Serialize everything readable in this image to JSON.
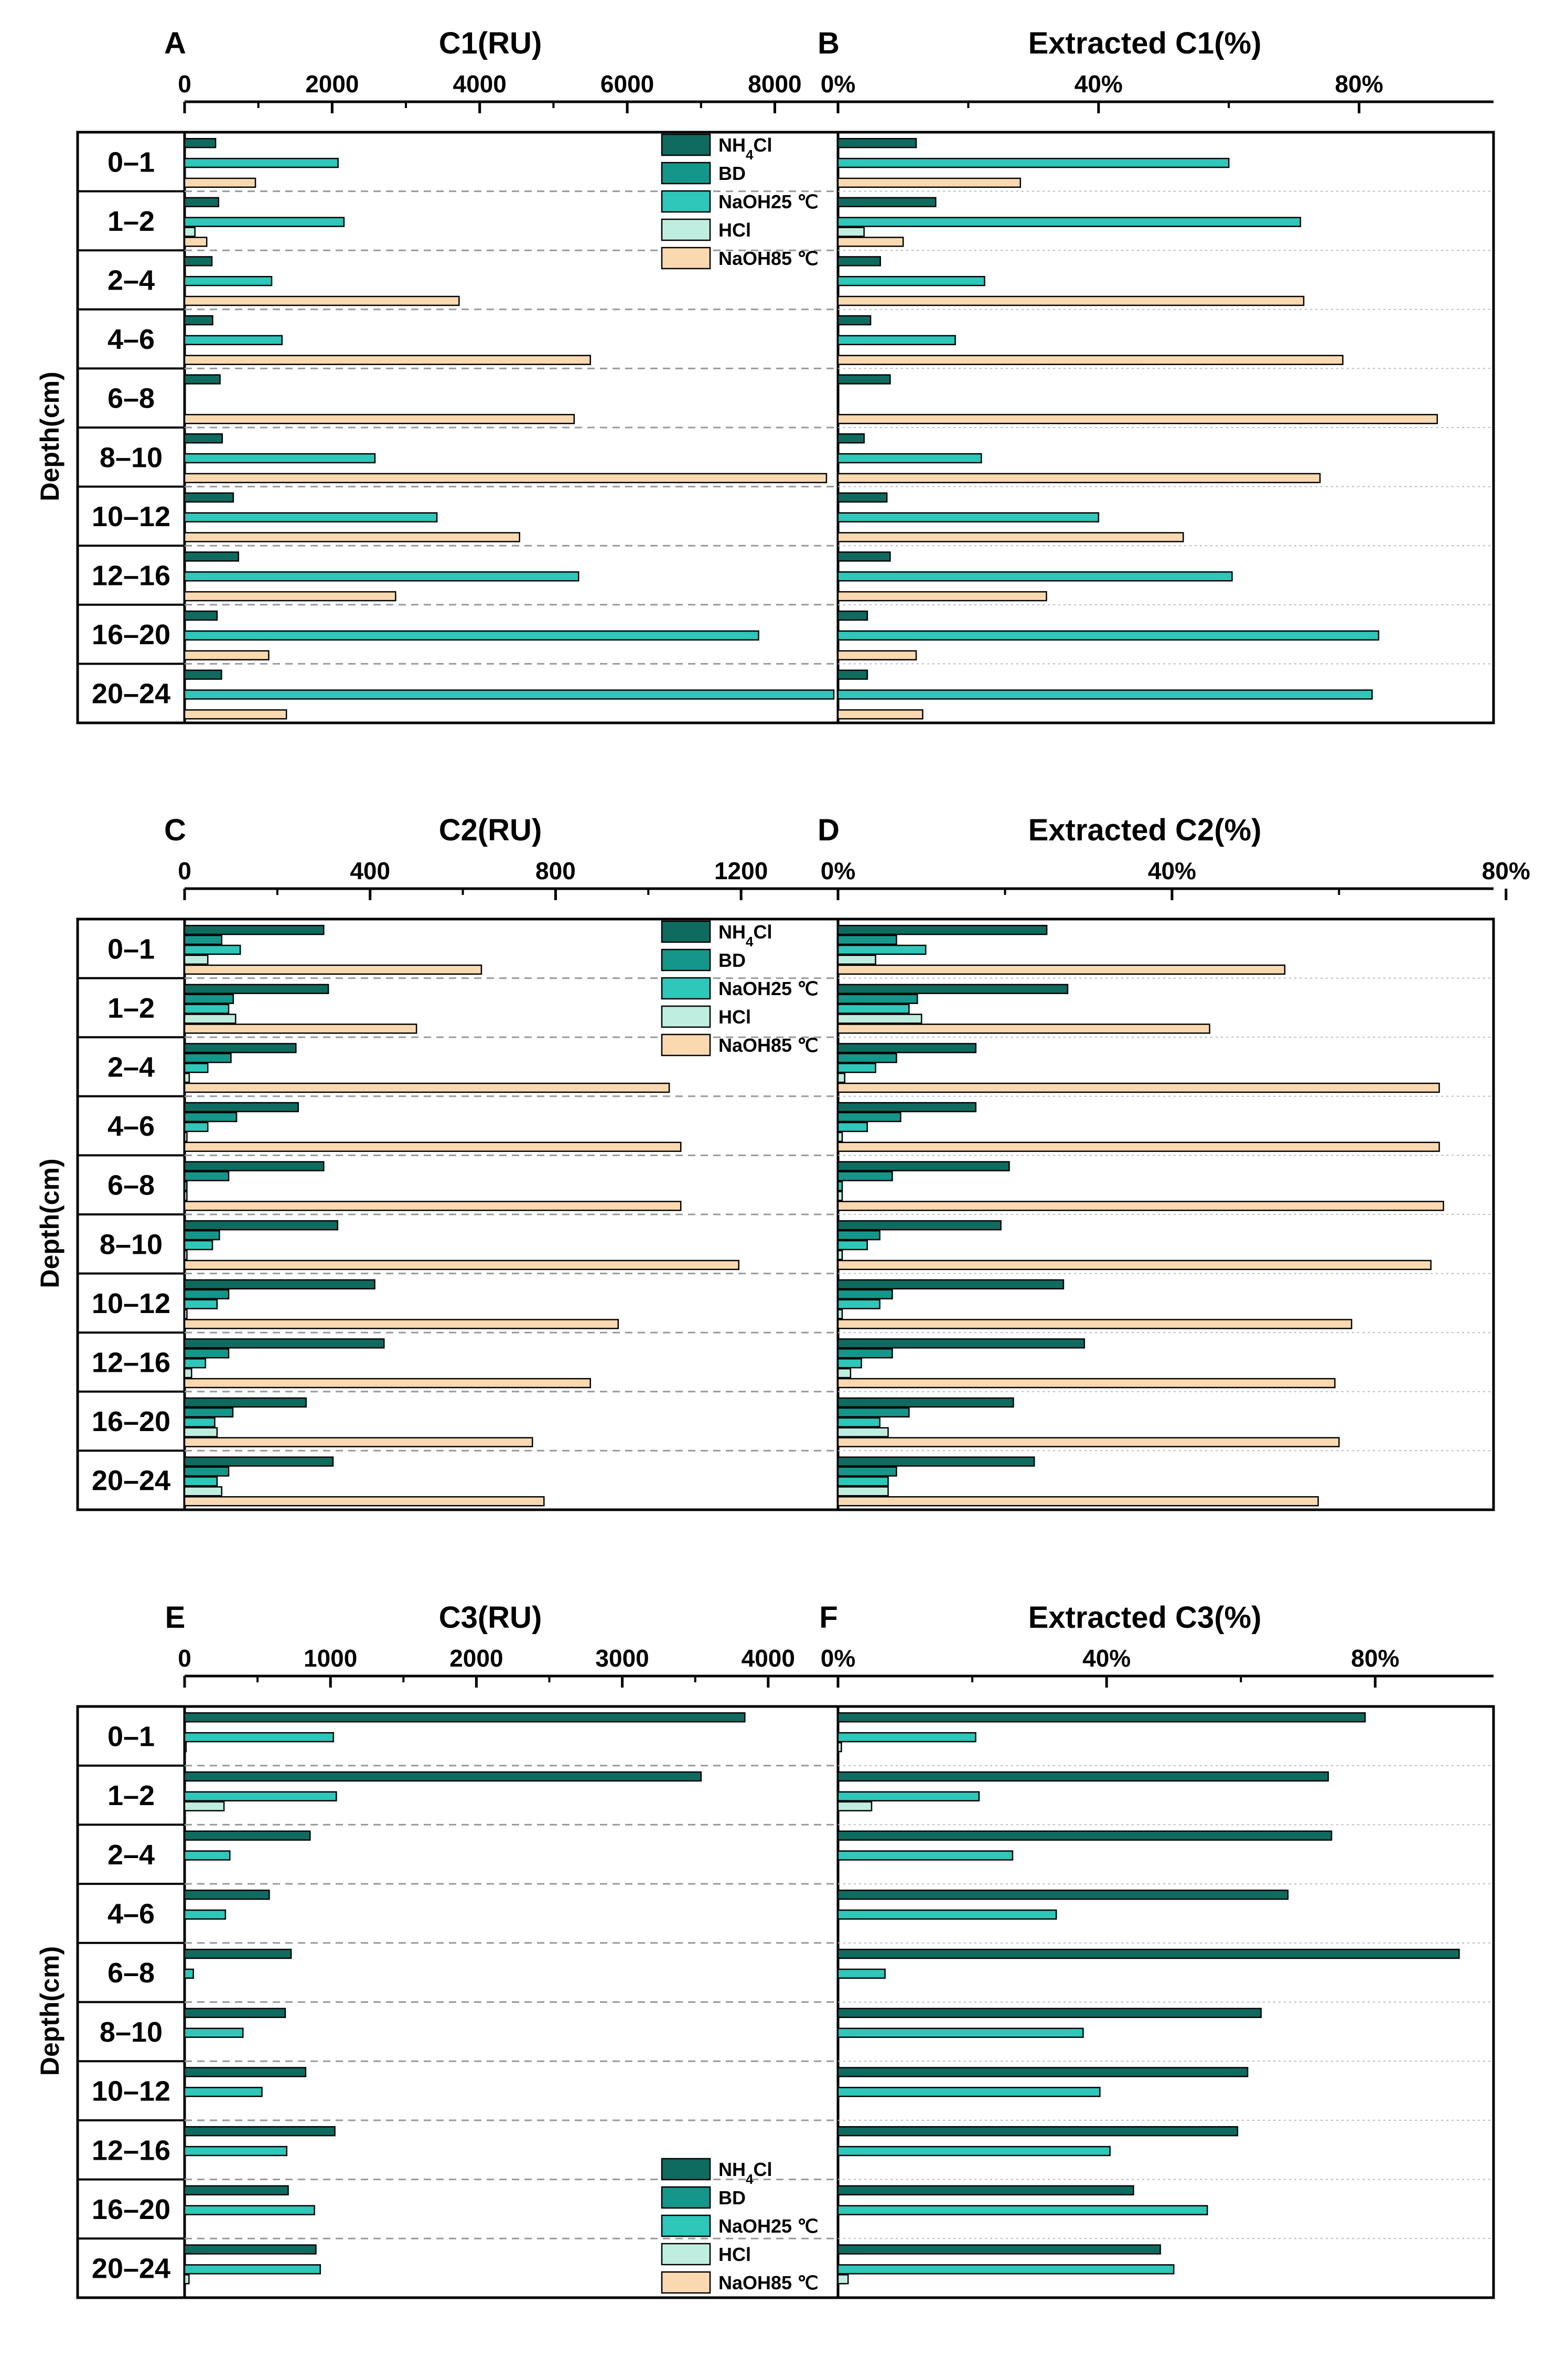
{
  "y_axis_label": "Depth(cm)",
  "depth_categories": [
    "0–1",
    "1–2",
    "2–4",
    "4–6",
    "6–8",
    "8–10",
    "10–12",
    "12–16",
    "16–20",
    "20–24"
  ],
  "fractions": [
    "NH4Cl",
    "BD",
    "NaOH25 ℃",
    "HCl",
    "NaOH85 ℃"
  ],
  "colors": {
    "NH4Cl": "#0f6b5f",
    "BD": "#15968a",
    "NaOH25 ℃": "#2ec7b9",
    "HCl": "#bfeee0",
    "NaOH85 ℃": "#fbd9b0"
  },
  "chart_data": [
    {
      "panel": "A",
      "type": "bar",
      "orientation": "horizontal",
      "title": "C1(RU)",
      "xlim": [
        0,
        8800
      ],
      "ticks": [
        0,
        2000,
        4000,
        6000,
        8000
      ],
      "tick_labels": [
        "0",
        "2000",
        "4000",
        "6000",
        "8000"
      ],
      "series": [
        {
          "name": "NH4Cl",
          "values": [
            420,
            460,
            370,
            380,
            480,
            510,
            660,
            730,
            440,
            500
          ]
        },
        {
          "name": "BD",
          "values": [
            0,
            0,
            0,
            0,
            0,
            0,
            0,
            0,
            0,
            0
          ]
        },
        {
          "name": "NaOH25 ℃",
          "values": [
            2080,
            2160,
            1180,
            1320,
            0,
            2580,
            3420,
            5340,
            7780,
            8800
          ]
        },
        {
          "name": "HCl",
          "values": [
            0,
            140,
            0,
            0,
            0,
            0,
            0,
            0,
            0,
            0
          ]
        },
        {
          "name": "NaOH85 ℃",
          "values": [
            960,
            300,
            3720,
            5500,
            5280,
            8700,
            4540,
            2860,
            1140,
            1380
          ]
        }
      ],
      "legend": "top-right"
    },
    {
      "panel": "B",
      "type": "bar",
      "orientation": "horizontal",
      "title": "Extracted C1(%)",
      "xlim": [
        0,
        100
      ],
      "ticks": [
        0,
        40,
        80
      ],
      "tick_labels": [
        "0%",
        "40%",
        "80%"
      ],
      "series": [
        {
          "name": "NH4Cl",
          "values": [
            12,
            15,
            6.5,
            5,
            8,
            4,
            7.5,
            8,
            4.5,
            4.5
          ]
        },
        {
          "name": "BD",
          "values": [
            0,
            0,
            0,
            0,
            0,
            0,
            0,
            0,
            0,
            0
          ]
        },
        {
          "name": "NaOH25 ℃",
          "values": [
            60,
            71,
            22.5,
            18,
            0,
            22,
            40,
            60.5,
            83,
            82
          ]
        },
        {
          "name": "HCl",
          "values": [
            0,
            4,
            0,
            0,
            0,
            0,
            0,
            0,
            0,
            0
          ]
        },
        {
          "name": "NaOH85 ℃",
          "values": [
            28,
            10,
            71.5,
            77.5,
            92,
            74,
            53,
            32,
            12,
            13
          ]
        }
      ]
    },
    {
      "panel": "C",
      "type": "bar",
      "orientation": "horizontal",
      "title": "C2(RU)",
      "xlim": [
        0,
        1400
      ],
      "ticks": [
        0,
        400,
        800,
        1200
      ],
      "tick_labels": [
        "0",
        "400",
        "800",
        "1200"
      ],
      "series": [
        {
          "name": "NH4Cl",
          "values": [
            300,
            310,
            240,
            245,
            300,
            330,
            410,
            430,
            262,
            320
          ]
        },
        {
          "name": "BD",
          "values": [
            80,
            105,
            100,
            112,
            95,
            75,
            95,
            95,
            104,
            95
          ]
        },
        {
          "name": "NaOH25 ℃",
          "values": [
            120,
            95,
            50,
            50,
            5,
            60,
            70,
            45,
            65,
            70
          ]
        },
        {
          "name": "HCl",
          "values": [
            50,
            110,
            10,
            5,
            5,
            5,
            5,
            15,
            70,
            80
          ]
        },
        {
          "name": "NaOH85 ℃",
          "values": [
            640,
            500,
            1045,
            1070,
            1070,
            1195,
            935,
            875,
            750,
            775
          ]
        }
      ],
      "legend": "top-right"
    },
    {
      "panel": "D",
      "type": "bar",
      "orientation": "horizontal",
      "title": "Extracted C2(%)",
      "xlim": [
        0,
        78
      ],
      "ticks": [
        0,
        40,
        80
      ],
      "tick_labels": [
        "0%",
        "40%",
        "80%"
      ],
      "series": [
        {
          "name": "NH4Cl",
          "values": [
            25,
            27.5,
            16.5,
            16.5,
            20.5,
            19.5,
            27,
            29.5,
            21,
            23.5
          ]
        },
        {
          "name": "BD",
          "values": [
            7,
            9.5,
            7,
            7.5,
            6.5,
            5,
            6.5,
            6.5,
            8.5,
            7
          ]
        },
        {
          "name": "NaOH25 ℃",
          "values": [
            10.5,
            8.5,
            4.5,
            3.5,
            0.5,
            3.5,
            5,
            2.8,
            5,
            6
          ]
        },
        {
          "name": "HCl",
          "values": [
            4.5,
            10,
            0.8,
            0.5,
            0.5,
            0.5,
            0.5,
            1.5,
            6,
            6
          ]
        },
        {
          "name": "NaOH85 ℃",
          "values": [
            53.5,
            44.5,
            72,
            72,
            72.5,
            71,
            61.5,
            59.5,
            60,
            57.5
          ]
        }
      ]
    },
    {
      "panel": "E",
      "type": "bar",
      "orientation": "horizontal",
      "title": "C3(RU)",
      "xlim": [
        0,
        4450
      ],
      "ticks": [
        0,
        1000,
        2000,
        3000,
        4000
      ],
      "tick_labels": [
        "0",
        "1000",
        "2000",
        "3000",
        "4000"
      ],
      "series": [
        {
          "name": "NH4Cl",
          "values": [
            3840,
            3540,
            860,
            580,
            730,
            690,
            830,
            1030,
            710,
            900
          ]
        },
        {
          "name": "BD",
          "values": [
            0,
            0,
            0,
            0,
            0,
            0,
            0,
            0,
            0,
            0
          ]
        },
        {
          "name": "NaOH25 ℃",
          "values": [
            1020,
            1040,
            310,
            280,
            60,
            400,
            530,
            700,
            890,
            930
          ]
        },
        {
          "name": "HCl",
          "values": [
            10,
            270,
            0,
            0,
            0,
            0,
            0,
            0,
            0,
            30
          ]
        },
        {
          "name": "NaOH85 ℃",
          "values": [
            0,
            0,
            0,
            0,
            0,
            0,
            0,
            0,
            0,
            0
          ]
        }
      ],
      "legend": "bottom-right"
    },
    {
      "panel": "F",
      "type": "bar",
      "orientation": "horizontal",
      "title": "Extracted C3(%)",
      "xlim": [
        0,
        97
      ],
      "ticks": [
        0,
        40,
        80
      ],
      "tick_labels": [
        "0%",
        "40%",
        "80%"
      ],
      "series": [
        {
          "name": "NH4Cl",
          "values": [
            78.5,
            73,
            73.5,
            67,
            92.5,
            63,
            61,
            59.5,
            44,
            48
          ]
        },
        {
          "name": "BD",
          "values": [
            0,
            0,
            0,
            0,
            0,
            0,
            0,
            0,
            0,
            0
          ]
        },
        {
          "name": "NaOH25 ℃",
          "values": [
            20.5,
            21,
            26,
            32.5,
            7,
            36.5,
            39,
            40.5,
            55,
            50
          ]
        },
        {
          "name": "HCl",
          "values": [
            0.5,
            5,
            0,
            0,
            0,
            0,
            0,
            0,
            0,
            1.5
          ]
        },
        {
          "name": "NaOH85 ℃",
          "values": [
            0,
            0,
            0,
            0,
            0,
            0,
            0,
            0,
            0,
            0
          ]
        }
      ]
    }
  ]
}
